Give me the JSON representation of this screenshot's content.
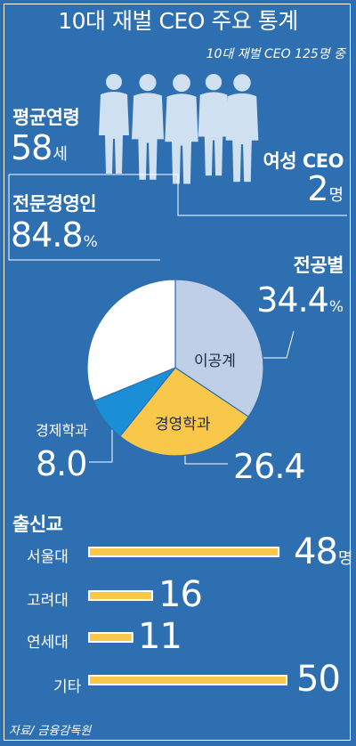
{
  "title": "10대 재벌 CEO 주요 통계",
  "subtitle": "10대 재벌 CEO 125명 중",
  "avg_age": {
    "label": "평균연령",
    "value": "58",
    "unit": "세"
  },
  "female_ceo": {
    "label": "여성 CEO",
    "value": "2",
    "unit": "명"
  },
  "professional": {
    "label": "전문경영인",
    "value": "84.8",
    "unit": "%"
  },
  "major": {
    "heading": "전공별",
    "engineering": {
      "label": "이공계",
      "value": "34.4",
      "unit": "%"
    },
    "business": {
      "label": "경영학과",
      "value": "26.4"
    },
    "economics": {
      "label": "경제학과",
      "value": "8.0"
    }
  },
  "school": {
    "heading": "출신교",
    "items": [
      {
        "label": "서울대",
        "value": "48",
        "unit": "명"
      },
      {
        "label": "고려대",
        "value": "16"
      },
      {
        "label": "연세대",
        "value": "11"
      },
      {
        "label": "기타",
        "value": "50"
      }
    ]
  },
  "source": "자료/ 금융감독원",
  "colors": {
    "background": "#2d6fb0",
    "engineering": "#bfcfe8",
    "business": "#f9c84a",
    "economics": "#1a8fd6",
    "other": "#ffffff",
    "bar": "#f9c84a",
    "people": "#cfe0f1"
  },
  "chart_data": [
    {
      "type": "pie",
      "title": "전공별",
      "labels": [
        "이공계",
        "경영학과",
        "경제학과",
        ""
      ],
      "values": [
        34.4,
        26.4,
        8.0,
        31.2
      ],
      "unit": "%"
    },
    {
      "type": "bar",
      "title": "출신교",
      "orientation": "horizontal",
      "categories": [
        "서울대",
        "고려대",
        "연세대",
        "기타"
      ],
      "values": [
        48,
        16,
        11,
        50
      ],
      "unit": "명"
    }
  ]
}
